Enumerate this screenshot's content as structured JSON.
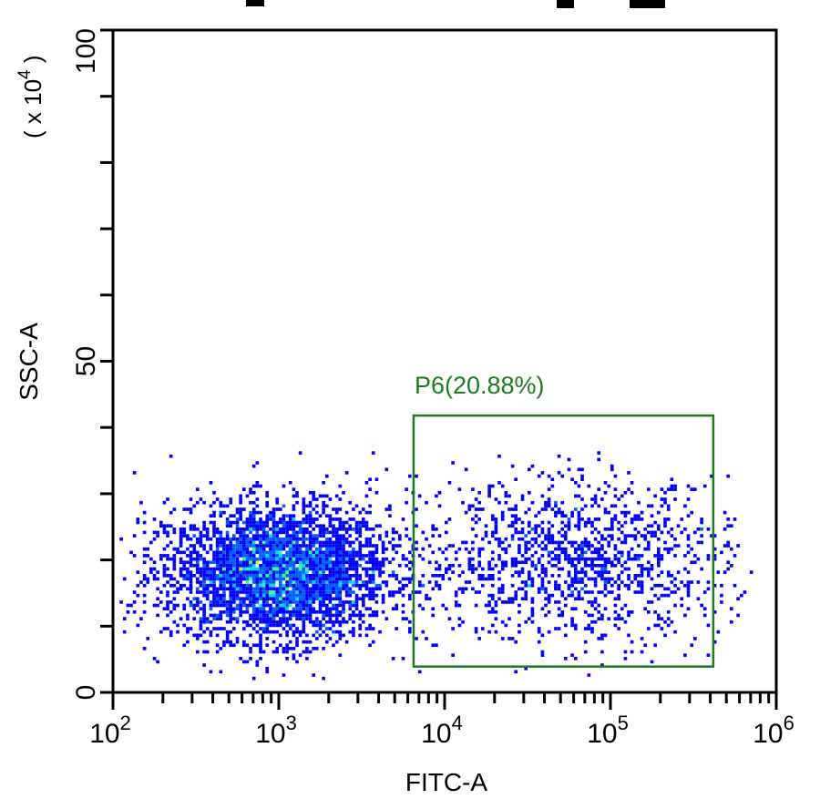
{
  "chart_data": {
    "type": "scatter",
    "subtype": "density-dot-plot",
    "xlabel": "FITC-A",
    "ylabel": "SSC-A",
    "y_multiplier_label": "( x 10",
    "y_multiplier_exp": "4",
    "x_scale": "log",
    "xlim": [
      100,
      1000000
    ],
    "ylim": [
      0,
      100
    ],
    "x_ticks": [
      {
        "base": "10",
        "exp": "2",
        "value": 100
      },
      {
        "base": "10",
        "exp": "3",
        "value": 1000
      },
      {
        "base": "10",
        "exp": "4",
        "value": 10000
      },
      {
        "base": "10",
        "exp": "5",
        "value": 100000
      },
      {
        "base": "10",
        "exp": "6",
        "value": 1000000
      }
    ],
    "y_ticks": [
      {
        "label": "0",
        "value": 0
      },
      {
        "label": "50",
        "value": 50
      },
      {
        "label": "100",
        "value": 100
      }
    ],
    "y_minor_step": 10,
    "grid": false,
    "colormap": [
      "#0000ff",
      "#0060ff",
      "#00d8ff",
      "#30ff80",
      "#c8ff00",
      "#ffd000",
      "#ff2000"
    ],
    "populations": [
      {
        "center_x": 1000,
        "center_y": 18,
        "spread_log_x": 0.33,
        "spread_y": 5,
        "share": 0.72
      },
      {
        "center_x": 60000,
        "center_y": 20,
        "spread_log_x": 0.45,
        "spread_y": 6,
        "share": 0.21
      }
    ],
    "gates": [
      {
        "name": "P6",
        "label": "P6(20.88%)",
        "percent": 20.88,
        "x_range": [
          6500,
          417000
        ],
        "y_range": [
          3.9,
          41.8
        ],
        "color": "#1e7b1e"
      }
    ]
  }
}
